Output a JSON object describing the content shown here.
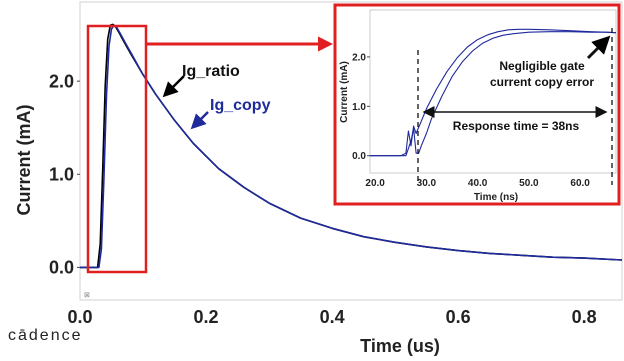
{
  "chart_data": [
    {
      "type": "line",
      "xlabel": "Time (us)",
      "ylabel": "Current (mA)",
      "xlim": [
        0.0,
        0.86
      ],
      "ylim": [
        -0.35,
        2.85
      ],
      "xticks": [
        "0.0",
        "0.2",
        "0.4",
        "0.6",
        "0.8"
      ],
      "yticks": [
        "0.0",
        "1.0",
        "2.0"
      ],
      "grid": false,
      "series": [
        {
          "name": "Ig_ratio",
          "color": "#000000",
          "x": [
            0.0,
            0.028,
            0.032,
            0.036,
            0.04,
            0.044,
            0.048,
            0.052,
            0.056,
            0.062,
            0.07,
            0.08,
            0.1,
            0.12,
            0.15,
            0.18,
            0.22,
            0.26,
            0.3,
            0.35,
            0.4,
            0.45,
            0.5,
            0.55,
            0.6,
            0.65,
            0.7,
            0.75,
            0.8,
            0.86
          ],
          "y": [
            0.0,
            0.0,
            0.25,
            1.05,
            1.95,
            2.45,
            2.6,
            2.61,
            2.59,
            2.52,
            2.42,
            2.3,
            2.07,
            1.86,
            1.58,
            1.33,
            1.06,
            0.86,
            0.69,
            0.53,
            0.42,
            0.33,
            0.27,
            0.22,
            0.18,
            0.15,
            0.13,
            0.11,
            0.1,
            0.08
          ]
        },
        {
          "name": "Ig_copy",
          "color": "#1f2a9c",
          "x": [
            0.0,
            0.03,
            0.034,
            0.038,
            0.042,
            0.046,
            0.05,
            0.054,
            0.058,
            0.064,
            0.072,
            0.082,
            0.1,
            0.12,
            0.15,
            0.18,
            0.22,
            0.26,
            0.3,
            0.35,
            0.4,
            0.45,
            0.5,
            0.55,
            0.6,
            0.65,
            0.7,
            0.75,
            0.8,
            0.86
          ],
          "y": [
            0.0,
            0.0,
            0.2,
            0.95,
            1.85,
            2.38,
            2.56,
            2.6,
            2.58,
            2.51,
            2.41,
            2.29,
            2.07,
            1.86,
            1.58,
            1.33,
            1.06,
            0.86,
            0.69,
            0.53,
            0.42,
            0.33,
            0.27,
            0.22,
            0.18,
            0.15,
            0.13,
            0.11,
            0.1,
            0.08
          ]
        }
      ],
      "annotations": [
        "Ig_ratio",
        "Ig_copy"
      ]
    },
    {
      "type": "line",
      "xlabel": "Time (ns)",
      "ylabel": "Current (mA)",
      "xlim": [
        19.0,
        67.0
      ],
      "ylim": [
        -0.35,
        2.95
      ],
      "xticks": [
        "20.0",
        "30.0",
        "40.0",
        "50.0",
        "60.0"
      ],
      "yticks": [
        "0.0",
        "1.0",
        "2.0"
      ],
      "series": [
        {
          "name": "Ig_ratio",
          "color": "#1f2a9c",
          "x": [
            19,
            25,
            26,
            26.5,
            27,
            27.5,
            28,
            29,
            30,
            32,
            34,
            36,
            38,
            40,
            42,
            44,
            46,
            48,
            50,
            54,
            58,
            62,
            65,
            67
          ],
          "y": [
            0.0,
            0.0,
            0.05,
            0.5,
            0.2,
            0.6,
            0.45,
            0.7,
            0.95,
            1.35,
            1.7,
            1.98,
            2.2,
            2.35,
            2.45,
            2.51,
            2.55,
            2.56,
            2.56,
            2.55,
            2.53,
            2.51,
            2.5,
            2.49
          ]
        },
        {
          "name": "Ig_copy",
          "color": "#1f2a9c",
          "x": [
            19,
            26,
            27,
            27.5,
            28,
            28.5,
            29,
            30,
            31,
            33,
            35,
            37,
            39,
            41,
            43,
            45,
            47,
            50,
            54,
            58,
            62,
            65,
            67
          ],
          "y": [
            0.0,
            0.0,
            0.3,
            0.55,
            0.05,
            0.05,
            0.2,
            0.45,
            0.75,
            1.2,
            1.6,
            1.9,
            2.12,
            2.28,
            2.38,
            2.44,
            2.47,
            2.5,
            2.51,
            2.51,
            2.5,
            2.5,
            2.49
          ]
        }
      ],
      "annotations": [
        "Negligible gate",
        "current copy error",
        "Response time = 38ns"
      ]
    }
  ],
  "logo": "cādence",
  "colors": {
    "highlight": "#e02020",
    "copy_label": "#1f2a9c",
    "curve": "#1f2a9c"
  }
}
